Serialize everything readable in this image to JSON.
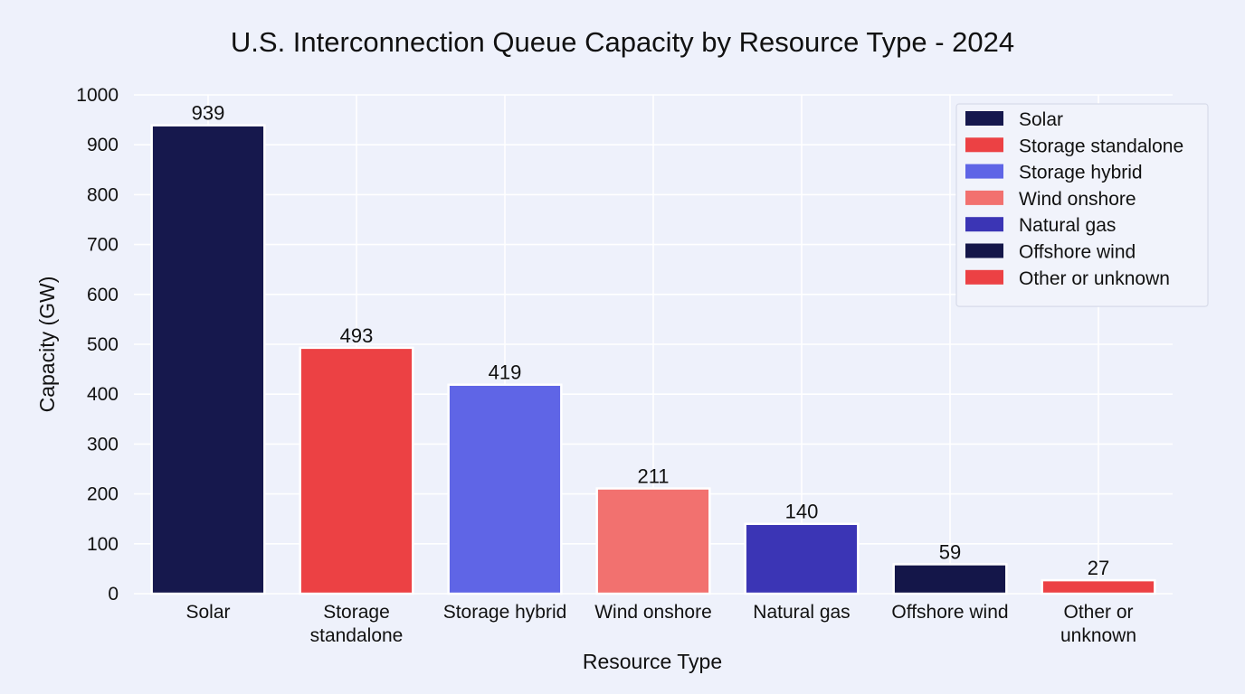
{
  "chart_data": {
    "type": "bar",
    "title": "U.S. Interconnection Queue Capacity by Resource Type - 2024",
    "xlabel": "Resource Type",
    "ylabel": "Capacity (GW)",
    "ylim": [
      0,
      1000
    ],
    "yticks": [
      "0",
      "100",
      "200",
      "300",
      "400",
      "500",
      "600",
      "700",
      "800",
      "900",
      "1000"
    ],
    "grid": true,
    "legend_position": "top-right",
    "categories": [
      {
        "label_lines": [
          "Solar"
        ],
        "legend": "Solar",
        "value": 939,
        "color": "#16184d"
      },
      {
        "label_lines": [
          "Storage",
          "standalone"
        ],
        "legend": "Storage standalone",
        "value": 493,
        "color": "#ec4144"
      },
      {
        "label_lines": [
          "Storage hybrid"
        ],
        "legend": "Storage hybrid",
        "value": 419,
        "color": "#5f65e6"
      },
      {
        "label_lines": [
          "Wind onshore"
        ],
        "legend": "Wind onshore",
        "value": 211,
        "color": "#f2716f"
      },
      {
        "label_lines": [
          "Natural gas"
        ],
        "legend": "Natural gas",
        "value": 140,
        "color": "#3b35b5"
      },
      {
        "label_lines": [
          "Offshore wind"
        ],
        "legend": "Offshore wind",
        "value": 59,
        "color": "#141649"
      },
      {
        "label_lines": [
          "Other or",
          "unknown"
        ],
        "legend": "Other or unknown",
        "value": 27,
        "color": "#ec4144"
      }
    ]
  }
}
